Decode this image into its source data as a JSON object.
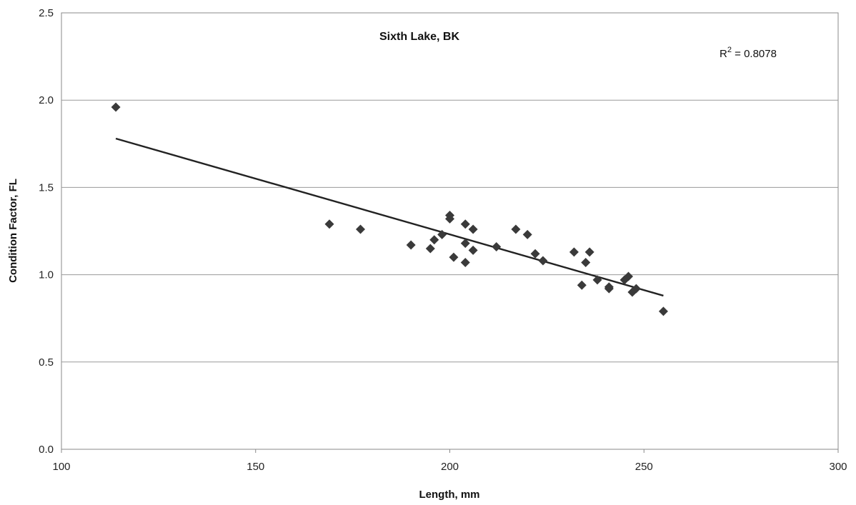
{
  "chart_data": {
    "type": "scatter",
    "title": "Sixth Lake, BK",
    "xlabel": "Length, mm",
    "ylabel": "Condition Factor, FL",
    "xlim": [
      100,
      300
    ],
    "ylim": [
      0,
      2.5
    ],
    "xticks": [
      "100",
      "150",
      "200",
      "250",
      "300"
    ],
    "yticks": [
      "0.0",
      "0.5",
      "1.0",
      "1.5",
      "2.0",
      "2.5"
    ],
    "grid": "horizontal",
    "marker": "diamond",
    "marker_color": "#3a3a3a",
    "line_color": "#222222",
    "r2_prefix": "R",
    "r2_exp": "2",
    "r2_value": " = 0.8078",
    "points": [
      [
        114,
        1.96
      ],
      [
        169,
        1.29
      ],
      [
        177,
        1.26
      ],
      [
        190,
        1.17
      ],
      [
        195,
        1.15
      ],
      [
        196,
        1.2
      ],
      [
        198,
        1.23
      ],
      [
        200,
        1.34
      ],
      [
        200,
        1.32
      ],
      [
        201,
        1.1
      ],
      [
        204,
        1.29
      ],
      [
        204,
        1.18
      ],
      [
        204,
        1.07
      ],
      [
        206,
        1.26
      ],
      [
        206,
        1.14
      ],
      [
        212,
        1.16
      ],
      [
        217,
        1.26
      ],
      [
        220,
        1.23
      ],
      [
        222,
        1.12
      ],
      [
        224,
        1.08
      ],
      [
        232,
        1.13
      ],
      [
        234,
        0.94
      ],
      [
        235,
        1.07
      ],
      [
        236,
        1.13
      ],
      [
        238,
        0.97
      ],
      [
        241,
        0.93
      ],
      [
        241,
        0.92
      ],
      [
        245,
        0.97
      ],
      [
        246,
        0.99
      ],
      [
        247,
        0.9
      ],
      [
        248,
        0.92
      ],
      [
        255,
        0.79
      ]
    ],
    "trendline": {
      "x": [
        114,
        255
      ],
      "y": [
        1.78,
        0.88
      ]
    }
  }
}
